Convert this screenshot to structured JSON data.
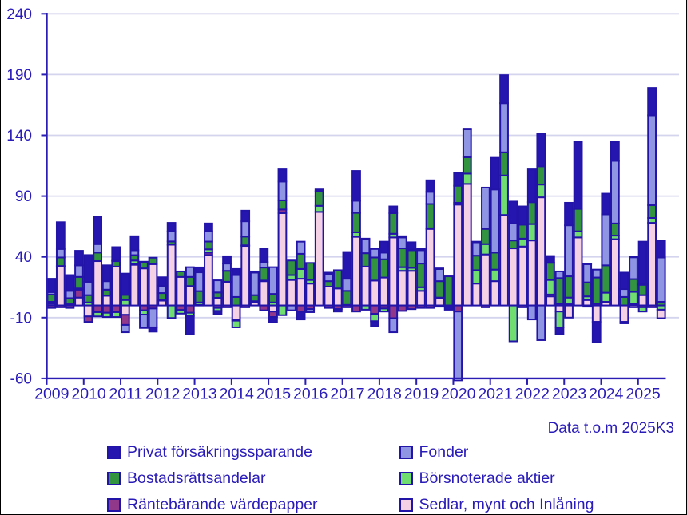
{
  "chart_data": {
    "type": "bar",
    "stacked": true,
    "title": "",
    "xlabel": "",
    "ylabel": "",
    "ylim": [
      -60,
      240
    ],
    "yticks": [
      240,
      190,
      140,
      90,
      40,
      -10,
      -60
    ],
    "grid": "dashed-horizontal",
    "legend_position": "bottom",
    "neg_stack_exceptions": {
      "2025K3": [
        "Börsnoterade aktier",
        "Sedlar, mynt och Inlåning",
        "Räntebärande värdepapper",
        "Bostadsrättsandelar",
        "Fonder",
        "Privat försäkringssparande"
      ]
    },
    "annotation": "Data t.o.m 2025K3",
    "x_year_labels": [
      "2009",
      "2010",
      "2011",
      "2012",
      "2013",
      "2014",
      "2015",
      "2016",
      "2017",
      "2018",
      "2019",
      "2020",
      "2021",
      "2022",
      "2023",
      "2024",
      "2025"
    ],
    "categories": [
      "2009K1",
      "2009K2",
      "2009K3",
      "2009K4",
      "2010K1",
      "2010K2",
      "2010K3",
      "2010K4",
      "2011K1",
      "2011K2",
      "2011K3",
      "2011K4",
      "2012K1",
      "2012K2",
      "2012K3",
      "2012K4",
      "2013K1",
      "2013K2",
      "2013K3",
      "2013K4",
      "2014K1",
      "2014K2",
      "2014K3",
      "2014K4",
      "2015K1",
      "2015K2",
      "2015K3",
      "2015K4",
      "2016K1",
      "2016K2",
      "2016K3",
      "2016K4",
      "2017K1",
      "2017K2",
      "2017K3",
      "2017K4",
      "2018K1",
      "2018K2",
      "2018K3",
      "2018K4",
      "2019K1",
      "2019K2",
      "2019K3",
      "2019K4",
      "2020K1",
      "2020K2",
      "2020K3",
      "2020K4",
      "2021K1",
      "2021K2",
      "2021K3",
      "2021K4",
      "2022K1",
      "2022K2",
      "2022K3",
      "2022K4",
      "2023K1",
      "2023K2",
      "2023K3",
      "2023K4",
      "2024K1",
      "2024K2",
      "2024K3",
      "2024K4",
      "2025K1",
      "2025K2",
      "2025K3"
    ],
    "series": [
      {
        "name": "Privat försäkringssparande",
        "color": "#2616b0",
        "values": [
          11,
          22,
          13,
          12,
          22,
          22.5,
          13,
          11,
          17.5,
          11.6,
          0.5,
          -3.5,
          7,
          7,
          0,
          -15,
          4,
          6.4,
          -2.5,
          6,
          5,
          8.7,
          1,
          11,
          -4.5,
          10,
          0,
          -6.5,
          0,
          1.5,
          1,
          -2,
          22,
          24.5,
          0.5,
          -4,
          9,
          5.5,
          1,
          6,
          1,
          9.5,
          0.5,
          -3.5,
          10.5,
          0.5,
          0.5,
          0,
          26,
          23,
          18,
          15,
          27,
          27,
          5.6,
          -5.5,
          18.5,
          55,
          0.5,
          -16.5,
          17,
          15.5,
          13.5,
          0.5,
          34.5,
          22.5,
          14
        ]
      },
      {
        "name": "Fonder",
        "color": "#8f94e3",
        "values": [
          2,
          7,
          6,
          9.5,
          11,
          7,
          7,
          0.5,
          -6,
          4,
          -11,
          -15.5,
          6,
          8.3,
          0,
          8,
          15.5,
          8.5,
          10,
          6,
          18,
          12.6,
          18.5,
          4.4,
          22,
          15.5,
          -4,
          10,
          -2.5,
          0,
          6,
          0,
          10,
          10,
          11.5,
          7,
          5.5,
          -11.5,
          9,
          0.5,
          11,
          10,
          10,
          0,
          -57,
          23,
          11,
          34,
          52,
          40.5,
          14,
          0,
          -11.5,
          -28.5,
          0,
          5.5,
          42,
          0,
          15,
          6.5,
          42,
          51.5,
          6.5,
          18,
          1,
          74,
          36.5
        ]
      },
      {
        "name": "Bostadsrättsandelar",
        "color": "#339440",
        "values": [
          6,
          7,
          5,
          9.5,
          6,
          7,
          5,
          4.5,
          4.2,
          4.4,
          5,
          5.3,
          5.7,
          2.7,
          4.5,
          7.5,
          9.3,
          6.4,
          4.4,
          9,
          7,
          7.2,
          5,
          10.7,
          7,
          7.5,
          12,
          12.5,
          14,
          12,
          4.5,
          15,
          11.5,
          16,
          11,
          19,
          15,
          17,
          15.5,
          14.5,
          19.5,
          20,
          13.5,
          24,
          14,
          13.5,
          12,
          12.5,
          14,
          19,
          6.5,
          11.5,
          18,
          15,
          14.1,
          21,
          17.5,
          18.5,
          11.5,
          21.5,
          22.5,
          10,
          7,
          10.5,
          8.5,
          10.5,
          3
        ]
      },
      {
        "name": "Börsnoterade aktier",
        "color": "#70dd70",
        "values": [
          1.5,
          0.5,
          0.5,
          1,
          2.5,
          -3.5,
          -3.5,
          -4,
          4.5,
          3,
          -3.5,
          0,
          0.5,
          -10.3,
          -3,
          -2.6,
          2,
          2.7,
          -2.5,
          0.5,
          -5.5,
          0.5,
          0.5,
          0.5,
          2.5,
          -8,
          4,
          8,
          3,
          5,
          0,
          0,
          0,
          3.7,
          -3.5,
          -6,
          -2.5,
          3,
          3,
          2.5,
          3,
          0.5,
          0.5,
          0,
          1.5,
          8.5,
          11,
          8.5,
          9.5,
          32.5,
          -29.5,
          6.5,
          13.5,
          10.5,
          12,
          -13,
          5.5,
          5,
          3,
          0,
          7.5,
          3,
          -1.2,
          10,
          -3.5,
          4,
          -3.5
        ]
      },
      {
        "name": "Räntebärande värdepapper",
        "color": "#91388b",
        "values": [
          -2,
          -1.5,
          -2,
          6.5,
          -4.5,
          -5.5,
          -6,
          -5.5,
          -8.3,
          0.5,
          -4,
          -2.5,
          0,
          0,
          -3.7,
          -6,
          0,
          2,
          -2,
          -1.5,
          -1,
          -1.5,
          0,
          -4,
          -4.5,
          3,
          0,
          -5,
          -3,
          0,
          -2,
          -3,
          -1.5,
          -5,
          0,
          -7,
          -2.5,
          -10.5,
          -4.5,
          -3,
          -2,
          -2,
          -1,
          0,
          -5,
          0,
          0,
          -1.5,
          0,
          0,
          0,
          -1.5,
          0,
          0,
          1.5,
          1.5,
          1,
          0,
          -1,
          1.5,
          0,
          0,
          0,
          1.2,
          -1.5,
          -1.5,
          0
        ]
      },
      {
        "name": "Sedlar, mynt och Inlåning",
        "color": "#f5d1e6",
        "values": [
          1.5,
          32,
          0.5,
          6.5,
          -9,
          36.5,
          8,
          32,
          -7.7,
          33.5,
          30.5,
          34,
          4,
          50,
          23.5,
          16,
          0.5,
          41.5,
          6.3,
          19,
          -11.5,
          49,
          3,
          20,
          -5,
          76,
          21,
          22,
          18,
          77,
          15.5,
          14,
          0.5,
          56.5,
          32,
          20.5,
          23,
          56,
          28.5,
          28.5,
          12,
          63,
          6,
          0,
          83,
          100,
          18,
          42,
          20,
          74.5,
          47,
          48.5,
          53.5,
          89,
          7.5,
          -5,
          -10,
          56,
          4.5,
          -13.5,
          3,
          54.5,
          -13.5,
          -1.5,
          8.5,
          68,
          -7
        ]
      }
    ]
  },
  "axes": {
    "y_tick_labels": [
      "240",
      "190",
      "140",
      "90",
      "40",
      "-10",
      "-60"
    ]
  }
}
